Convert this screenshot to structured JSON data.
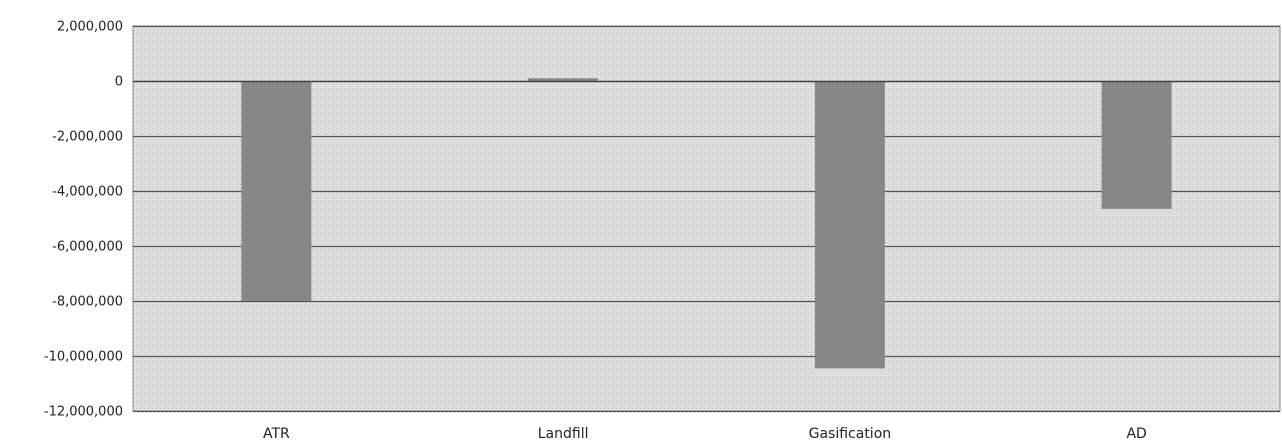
{
  "chart_data": {
    "type": "bar",
    "title": "",
    "xlabel": "",
    "ylabel": "",
    "categories": [
      "ATR",
      "Landfill",
      "Gasification",
      "AD"
    ],
    "values": [
      -8000000,
      100000,
      -10450000,
      -4650000
    ],
    "ylim": [
      -12000000,
      2000000
    ],
    "yticks": [
      2000000,
      0,
      -2000000,
      -4000000,
      -6000000,
      -8000000,
      -10000000,
      -12000000
    ],
    "ytick_labels": [
      "2,000,000",
      "0",
      "-2,000,000",
      "-4,000,000",
      "-6,000,000",
      "-8,000,000",
      "-10,000,000",
      "-12,000,000"
    ],
    "grid": true,
    "legend": "none"
  },
  "colors": {
    "bar": "#878787",
    "plot_background": "#d9d9d9",
    "grid": "#555555",
    "zero_line": "#444444"
  }
}
